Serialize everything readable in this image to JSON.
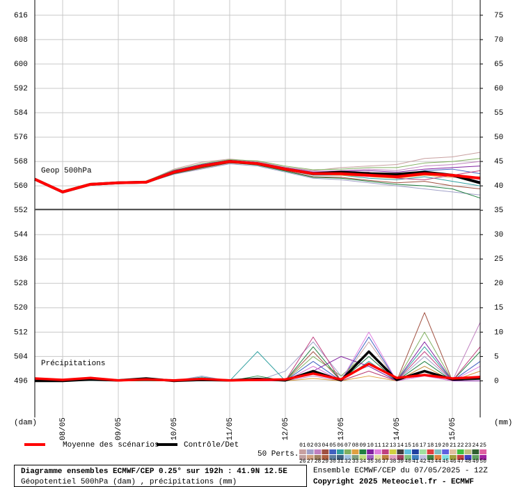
{
  "chart_data": {
    "type": "line",
    "title": "Diagramme ensembles ECMWF/CEP 0.25° sur 192h : 41.9N 12.5E",
    "subtitle": "Géopotentiel 500hPa (dam) , précipitations (mm)",
    "run_label": "Ensemble ECMWF/CEP du 07/05/2025 - 12Z",
    "copyright": "Copyright 2025 Meteociel.fr - ECMWF",
    "y_label": "(dam)",
    "y2_label": "(mm)",
    "annotations": [
      "Geop 500hPa",
      "Précipitations"
    ],
    "x": [
      0,
      12,
      24,
      36,
      48,
      60,
      72,
      84,
      96,
      108,
      120,
      132,
      144,
      156,
      168,
      180,
      192
    ],
    "xlim": [
      0,
      192
    ],
    "xticks": [
      {
        "value": 12,
        "label": "08/05"
      },
      {
        "value": 36,
        "label": "09/05"
      },
      {
        "value": 60,
        "label": "10/05"
      },
      {
        "value": 84,
        "label": "11/05"
      },
      {
        "value": 108,
        "label": "12/05"
      },
      {
        "value": 132,
        "label": "13/05"
      },
      {
        "value": 156,
        "label": "14/05"
      },
      {
        "value": 180,
        "label": "15/05"
      }
    ],
    "ylim": [
      484,
      621
    ],
    "yticks": [
      496,
      504,
      512,
      520,
      528,
      536,
      544,
      552,
      560,
      568,
      576,
      584,
      592,
      600,
      608,
      616
    ],
    "y2lim": [
      -7.5,
      78.125
    ],
    "y2ticks": [
      0,
      5,
      10,
      15,
      20,
      25,
      30,
      35,
      40,
      45,
      50,
      55,
      60,
      65,
      70,
      75
    ],
    "grid": true,
    "series": [
      {
        "name": "Contrôle/Det",
        "color": "#000000",
        "geop": [
          562.2,
          558,
          560.5,
          561,
          561.2,
          564.5,
          566.5,
          568,
          567.3,
          565.5,
          564,
          564.5,
          564,
          563.8,
          564.5,
          563.5,
          561
        ],
        "precip": [
          0,
          0,
          0.3,
          0.1,
          0.5,
          0,
          0.2,
          0.1,
          0.4,
          0.1,
          2,
          0.1,
          6,
          0.2,
          2,
          0.3,
          0.5
        ]
      },
      {
        "name": "Moyenne des scénarios",
        "color": "#ff0000",
        "geop": [
          562.2,
          558,
          560.5,
          561,
          561.2,
          564.5,
          566.5,
          568,
          567.3,
          565.5,
          564,
          564,
          563.5,
          563,
          564,
          563.5,
          562.5
        ],
        "precip": [
          0.5,
          0.2,
          0.6,
          0.1,
          0.3,
          0.1,
          0.4,
          0.1,
          0.2,
          0.3,
          1.5,
          0.3,
          3.5,
          0.6,
          1.2,
          0.5,
          0.8
        ]
      }
    ],
    "perturbations_label": "50 Perts.",
    "perturbations": [
      {
        "name": "01",
        "color": "#c8a0a0",
        "geop": [
          562.2,
          558.3,
          560.8,
          561.2,
          561.5,
          565.5,
          567.8,
          568.8,
          568,
          566.2,
          565,
          566,
          566.5,
          567,
          569,
          569.5,
          571
        ],
        "precip": [
          0,
          0,
          0.5,
          0,
          0.2,
          0,
          0.5,
          0,
          0.3,
          0,
          3,
          0,
          8,
          0,
          2,
          0,
          0.5
        ]
      },
      {
        "name": "02",
        "color": "#a0a0c8",
        "geop": [
          562.2,
          557.6,
          560.2,
          560.8,
          561,
          563.8,
          565.5,
          567.2,
          566.5,
          564.5,
          562.5,
          562,
          561,
          560,
          559,
          558,
          557
        ],
        "precip": [
          0,
          0,
          0.8,
          0,
          0.6,
          0,
          1,
          0,
          0,
          2,
          8,
          1,
          3,
          0,
          5,
          0,
          1
        ]
      },
      {
        "name": "03",
        "color": "#c080c0",
        "geop": [
          562.2,
          558.1,
          560.6,
          561.1,
          561.4,
          565,
          567,
          568.5,
          567.8,
          566,
          564.8,
          565,
          565.5,
          565,
          566.5,
          567,
          568
        ],
        "precip": [
          0.5,
          0,
          0.2,
          0,
          0.1,
          0,
          0.2,
          0,
          0.5,
          0,
          1,
          0,
          5,
          0,
          1,
          0,
          12
        ]
      },
      {
        "name": "04",
        "color": "#a05040",
        "geop": [
          562.2,
          557.8,
          560.4,
          560.9,
          561,
          564,
          565.8,
          567.5,
          567,
          565,
          563,
          562.8,
          561.8,
          561,
          561.5,
          560,
          559
        ],
        "precip": [
          0,
          0,
          0.3,
          0,
          0,
          0,
          0,
          0,
          0.2,
          0,
          6,
          0,
          2,
          0,
          14,
          0,
          2
        ]
      },
      {
        "name": "05",
        "color": "#4060c0",
        "geop": [
          562.2,
          558.2,
          560.7,
          561,
          561.3,
          564.8,
          566.8,
          568.3,
          567.5,
          565.8,
          564.3,
          564.5,
          564,
          563.5,
          565,
          565.5,
          564
        ],
        "precip": [
          0,
          0,
          0.6,
          0,
          0.3,
          0,
          0.3,
          0,
          0,
          0,
          4,
          0,
          9,
          0,
          3,
          0,
          4
        ]
      },
      {
        "name": "06",
        "color": "#30a0a0",
        "geop": [
          562.2,
          557.9,
          560.3,
          561,
          561.1,
          564.2,
          566.2,
          567.8,
          567,
          565.2,
          563.5,
          563.5,
          562.5,
          562,
          563,
          561.5,
          560
        ],
        "precip": [
          0,
          0,
          0.1,
          0,
          0.1,
          0,
          0.8,
          0,
          6,
          0,
          2,
          0,
          4,
          0,
          7,
          0,
          1
        ]
      },
      {
        "name": "07",
        "color": "#80b060",
        "geop": [
          562.2,
          558,
          560.5,
          561.2,
          561.6,
          565.2,
          567.3,
          568.6,
          568.2,
          566.5,
          565.3,
          565.5,
          566,
          566,
          567.5,
          568,
          569
        ],
        "precip": [
          0,
          0,
          0.2,
          0,
          0.4,
          0,
          0.2,
          0,
          0.2,
          0,
          5,
          1,
          6,
          0,
          10,
          0,
          0.5
        ]
      },
      {
        "name": "08",
        "color": "#e0a040",
        "geop": [
          562.2,
          558.4,
          560.9,
          561.1,
          561.2,
          564.6,
          566.4,
          567.9,
          567.2,
          565.4,
          563.8,
          563.5,
          563,
          562.5,
          563.5,
          562.8,
          563
        ],
        "precip": [
          0,
          0,
          0.4,
          0,
          0.2,
          0,
          0.1,
          0,
          0.1,
          0,
          0.5,
          0,
          1,
          0,
          3,
          0,
          2
        ]
      },
      {
        "name": "09",
        "color": "#208040",
        "geop": [
          562.2,
          557.7,
          560.2,
          560.8,
          561,
          564,
          566,
          567.6,
          566.8,
          564.8,
          562.8,
          562.5,
          561.5,
          560.5,
          560,
          559,
          556
        ],
        "precip": [
          0,
          0,
          0.5,
          0,
          0,
          0,
          0.6,
          0,
          1,
          0,
          7,
          0,
          5,
          0,
          4,
          0,
          6
        ]
      },
      {
        "name": "10",
        "color": "#8020a0",
        "geop": [
          562.2,
          558.1,
          560.6,
          561.1,
          561.5,
          565,
          567,
          568.4,
          567.6,
          565.9,
          564.5,
          564.8,
          565,
          564.5,
          565.5,
          566,
          566.5
        ],
        "precip": [
          0,
          0,
          0.3,
          0,
          0.2,
          0,
          0.2,
          0,
          0.3,
          0,
          2,
          5,
          3,
          0,
          8,
          0,
          0
        ]
      },
      {
        "name": "11",
        "color": "#e080e0",
        "geop": [
          562.2,
          558,
          560.5,
          561,
          561.3,
          564.6,
          566.6,
          568.1,
          567.4,
          565.6,
          564.1,
          563.8,
          563,
          563.8,
          564.5,
          563,
          561.5
        ],
        "precip": [
          0,
          0,
          0.2,
          0,
          0.5,
          0,
          0.4,
          0,
          0.2,
          0,
          3,
          0,
          10,
          0,
          1,
          0,
          3
        ]
      },
      {
        "name": "12",
        "color": "#c04080",
        "geop": [
          562.2,
          557.9,
          560.4,
          560.9,
          561.1,
          564.3,
          566.3,
          567.8,
          567.1,
          565.3,
          563.7,
          564.2,
          564.5,
          562.5,
          562,
          563.5,
          565
        ],
        "precip": [
          0,
          0,
          0.3,
          0,
          0.1,
          0,
          0.3,
          0,
          0,
          0,
          9,
          0,
          2,
          0,
          6,
          0,
          7
        ]
      },
      {
        "name": "13",
        "color": "#d0d040"
      },
      {
        "name": "14",
        "color": "#404040"
      },
      {
        "name": "15",
        "color": "#60c0e0"
      },
      {
        "name": "16",
        "color": "#2040a0"
      },
      {
        "name": "17",
        "color": "#a0e0a0"
      },
      {
        "name": "18",
        "color": "#e04040"
      },
      {
        "name": "19",
        "color": "#80c0c0"
      },
      {
        "name": "20",
        "color": "#6060e0"
      },
      {
        "name": "21",
        "color": "#e0c0a0"
      },
      {
        "name": "22",
        "color": "#40c040"
      },
      {
        "name": "23",
        "color": "#c0c080"
      },
      {
        "name": "24",
        "color": "#306030"
      },
      {
        "name": "25",
        "color": "#e060a0"
      },
      {
        "name": "26",
        "color": "#c0a0a0"
      },
      {
        "name": "27",
        "color": "#d0a080"
      },
      {
        "name": "28",
        "color": "#a08060"
      },
      {
        "name": "29",
        "color": "#b06040"
      },
      {
        "name": "30",
        "color": "#6080a0"
      },
      {
        "name": "31",
        "color": "#406080"
      },
      {
        "name": "32",
        "color": "#a0c0e0"
      },
      {
        "name": "33",
        "color": "#80a080"
      },
      {
        "name": "34",
        "color": "#c0e080"
      },
      {
        "name": "35",
        "color": "#a060c0"
      },
      {
        "name": "36",
        "color": "#e0e0a0"
      },
      {
        "name": "37",
        "color": "#c08040"
      },
      {
        "name": "38",
        "color": "#e0a0c0"
      },
      {
        "name": "39",
        "color": "#a04060"
      },
      {
        "name": "40",
        "color": "#80c080"
      },
      {
        "name": "41",
        "color": "#4080c0"
      },
      {
        "name": "42",
        "color": "#c0c0e0"
      },
      {
        "name": "43",
        "color": "#408040"
      },
      {
        "name": "44",
        "color": "#e08040"
      },
      {
        "name": "45",
        "color": "#80e0e0"
      },
      {
        "name": "46",
        "color": "#a0a040"
      },
      {
        "name": "47",
        "color": "#c04040"
      },
      {
        "name": "48",
        "color": "#4040c0"
      },
      {
        "name": "49",
        "color": "#60a060"
      },
      {
        "name": "50",
        "color": "#a020a0"
      }
    ]
  }
}
